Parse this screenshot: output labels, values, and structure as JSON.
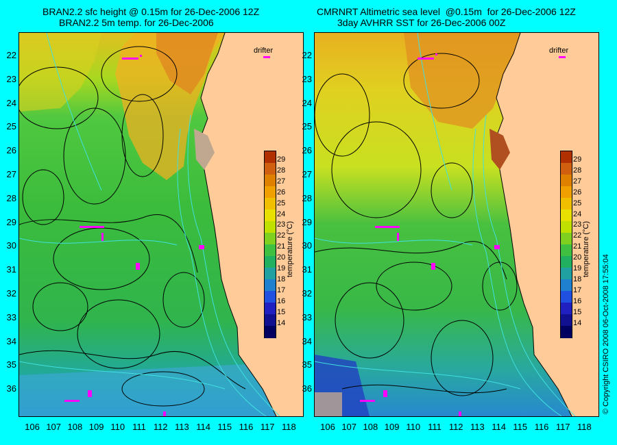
{
  "left": {
    "title_line1": "BRAN2.2 sfc height @ 0.15m for 26-Dec-2006 12Z",
    "title_line2": "BRAN2.2 5m temp. for 26-Dec-2006"
  },
  "right": {
    "title_line1": "CMRNRT Altimetric sea level  @0.15m  for 26-Dec-2006 12Z",
    "title_line2": "3day AVHRR SST for 26-Dec-2006 00Z"
  },
  "drifter_label": "drifter",
  "lat_ticks": [
    "22",
    "23",
    "24",
    "25",
    "26",
    "27",
    "28",
    "29",
    "30",
    "31",
    "32",
    "33",
    "34",
    "35",
    "36"
  ],
  "lon_ticks": [
    "106",
    "107",
    "108",
    "109",
    "110",
    "111",
    "112",
    "113",
    "114",
    "115",
    "116",
    "117",
    "118"
  ],
  "colorbar": {
    "label": "temperature (°C)",
    "ticks": [
      "29",
      "28",
      "27",
      "26",
      "25",
      "24",
      "23",
      "22",
      "21",
      "20",
      "19",
      "18",
      "17",
      "16",
      "15",
      "14"
    ],
    "colors": [
      "#b03000",
      "#d06010",
      "#e08000",
      "#f0a000",
      "#f0c000",
      "#e8e000",
      "#c0e000",
      "#80d020",
      "#40c040",
      "#20b060",
      "#20a0a0",
      "#2080d0",
      "#2050e0",
      "#2020c0",
      "#101090",
      "#000060"
    ]
  },
  "colors": {
    "land": "#ffcc99",
    "background": "#00ffff",
    "drifter": "#ff00ff"
  },
  "copyright": "© Copyright CSIRO 2008   06-Oct-2008 17:55:04"
}
